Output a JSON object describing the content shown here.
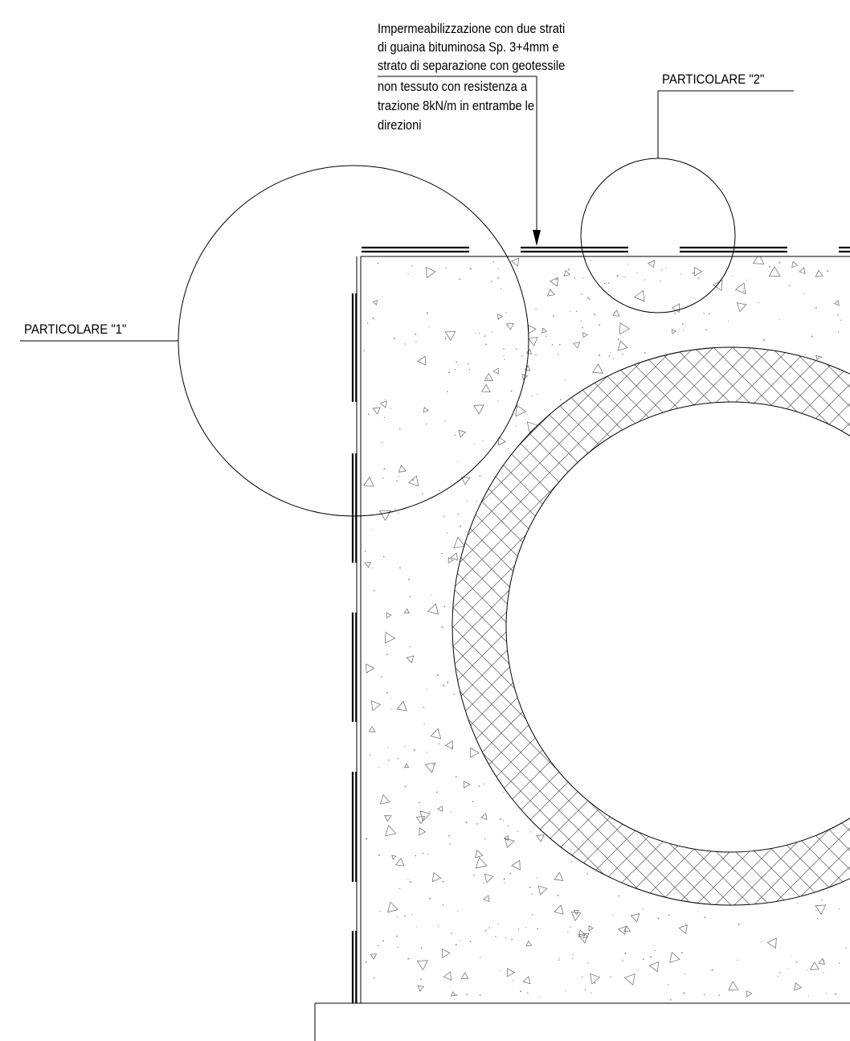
{
  "annotation": {
    "lines": [
      "Impermeabilizzazione con due strati",
      "di guaina bituminosa Sp. 3+4mm e",
      "strato di separazione con geotessile",
      "non tessuto con resistenza a",
      "trazione 8kN/m in entrambe le",
      "direzioni"
    ]
  },
  "details": {
    "detail_1": "PARTICOLARE \"1\"",
    "detail_2": "PARTICOLARE \"2\""
  }
}
